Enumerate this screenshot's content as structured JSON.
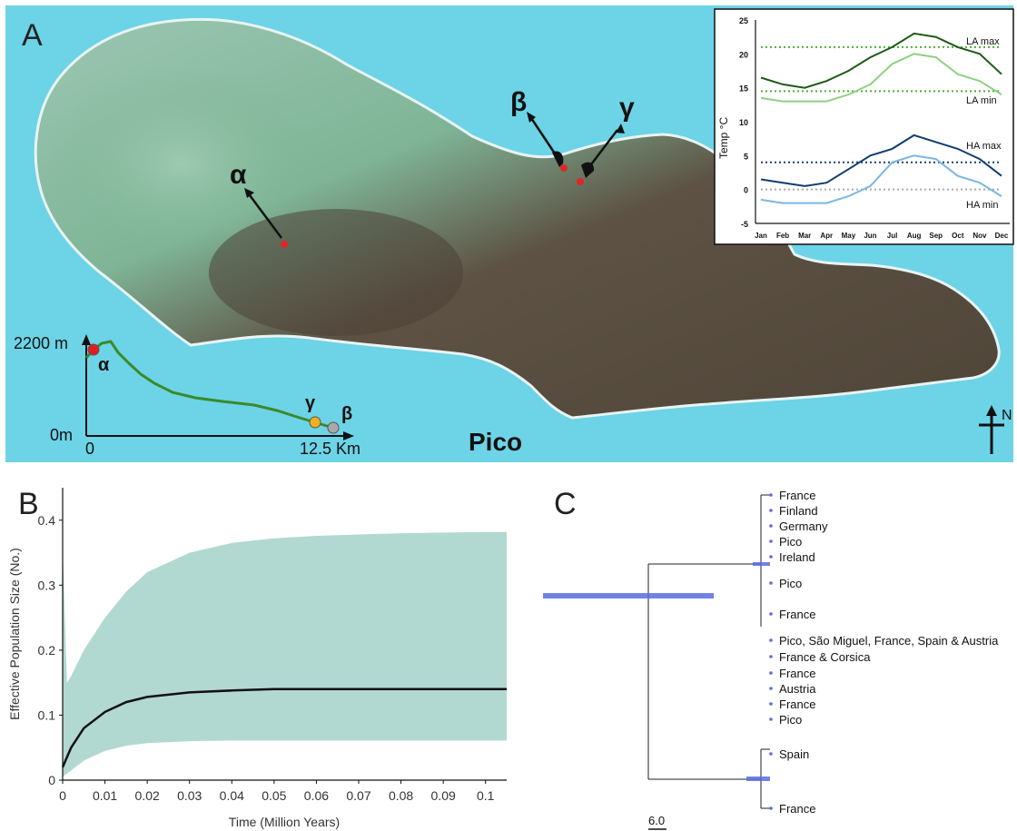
{
  "panel_a": {
    "label": "A",
    "island_name": "Pico",
    "north_label": "N",
    "sites": [
      {
        "symbol": "α"
      },
      {
        "symbol": "β"
      },
      {
        "symbol": "γ"
      }
    ],
    "colors": {
      "sea": "#6dd3e6",
      "lowland": "#6aa889",
      "highland": "#5a4d3e",
      "site_dot": "#e0262a"
    },
    "elevation_profile": {
      "y_top_label": "2200 m",
      "y_bottom_label": "0m",
      "x_left_label": "0",
      "x_right_label": "12.5 Km",
      "site_labels": [
        "α",
        "γ",
        "β"
      ],
      "site_colors": [
        "#e21d24",
        "#f2b11c",
        "#a9a9a9"
      ],
      "line_color": "#3b8a2a"
    },
    "temperature_inset": {
      "chart_data": {
        "type": "line",
        "ylabel": "Temp °C",
        "ylim": [
          -5,
          25
        ],
        "yticks": [
          "25",
          "20",
          "15",
          "10",
          "5",
          "0",
          "-5"
        ],
        "categories": [
          "Jan",
          "Feb",
          "Mar",
          "Apr",
          "May",
          "Jun",
          "Jul",
          "Aug",
          "Sep",
          "Oct",
          "Nov",
          "Dec"
        ],
        "series": [
          {
            "name": "LA max",
            "color": "#1e5a16",
            "values": [
              16.5,
              15.5,
              15,
              16,
              17.5,
              19.5,
              21,
              23,
              22.5,
              21,
              20,
              17
            ]
          },
          {
            "name": "LA min",
            "color": "#8fd183",
            "values": [
              13.5,
              13,
              13,
              13,
              14,
              15.5,
              18.5,
              20,
              19.5,
              17,
              16,
              14
            ]
          },
          {
            "name": "HA max",
            "color": "#0f3e6e",
            "values": [
              1.5,
              1,
              0.5,
              1,
              3,
              5,
              6,
              8,
              7,
              6,
              4.5,
              2
            ]
          },
          {
            "name": "HA min",
            "color": "#7ab7e3",
            "values": [
              -1.5,
              -2,
              -2,
              -2,
              -1,
              0.5,
              4,
              5,
              4.5,
              2,
              1,
              -1
            ]
          }
        ],
        "reference_lines": [
          {
            "value": 21,
            "color": "#4caf32"
          },
          {
            "value": 14.5,
            "color": "#4caf32"
          },
          {
            "value": 4,
            "color": "#1e3f7a"
          },
          {
            "value": 0,
            "color": "#aaaaaa"
          }
        ]
      }
    }
  },
  "panel_b": {
    "label": "B",
    "chart_data": {
      "type": "area",
      "xlabel": "Time (Million Years)",
      "ylabel": "Effective Population Size (No.)",
      "xlim": [
        0,
        0.105
      ],
      "ylim": [
        0,
        0.45
      ],
      "xticks": [
        "0",
        "0.01",
        "0.02",
        "0.03",
        "0.04",
        "0.05",
        "0.06",
        "0.07",
        "0.08",
        "0.09",
        "0.1"
      ],
      "yticks": [
        "0",
        "0.1",
        "0.2",
        "0.3",
        "0.4"
      ],
      "fill_color": "#b2d8d2",
      "median": {
        "x": [
          0,
          0.002,
          0.005,
          0.01,
          0.015,
          0.02,
          0.03,
          0.04,
          0.05,
          0.06,
          0.07,
          0.08,
          0.09,
          0.1,
          0.105
        ],
        "y": [
          0.02,
          0.05,
          0.08,
          0.105,
          0.12,
          0.128,
          0.135,
          0.138,
          0.14,
          0.14,
          0.14,
          0.14,
          0.14,
          0.14,
          0.14
        ]
      },
      "upper": {
        "x": [
          0,
          0.001,
          0.002,
          0.005,
          0.01,
          0.015,
          0.02,
          0.03,
          0.04,
          0.05,
          0.06,
          0.07,
          0.08,
          0.09,
          0.1,
          0.105
        ],
        "y": [
          0.36,
          0.15,
          0.16,
          0.2,
          0.25,
          0.29,
          0.32,
          0.35,
          0.365,
          0.372,
          0.376,
          0.378,
          0.38,
          0.381,
          0.382,
          0.382
        ]
      },
      "lower": {
        "x": [
          0,
          0.002,
          0.005,
          0.01,
          0.015,
          0.02,
          0.03,
          0.04,
          0.05,
          0.06,
          0.07,
          0.08,
          0.09,
          0.1,
          0.105
        ],
        "y": [
          0.005,
          0.015,
          0.03,
          0.045,
          0.053,
          0.057,
          0.06,
          0.061,
          0.061,
          0.061,
          0.061,
          0.061,
          0.061,
          0.061,
          0.061
        ]
      }
    }
  },
  "panel_c": {
    "label": "C",
    "scale_label": "6.0",
    "bar_color": "#5a6ce0",
    "tips": [
      "France",
      "Finland",
      "Germany",
      "Pico",
      "Ireland",
      "Pico",
      "France",
      "Pico, São Miguel, France, Spain & Austria",
      "France & Corsica",
      "France",
      "Austria",
      "France",
      "Pico",
      "Spain",
      "France"
    ]
  }
}
